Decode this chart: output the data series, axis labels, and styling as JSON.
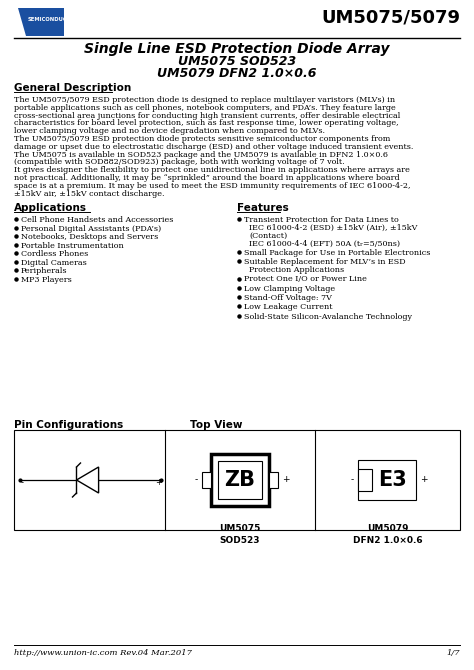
{
  "title_model": "UM5075/5079",
  "title_product": "Single Line ESD Protection Diode Array",
  "title_sub1": "UM5075 SOD523",
  "title_sub2": "UM5079 DFN2 1.0×0.6",
  "section_general": "General Description",
  "section_applications": "Applications",
  "applications": [
    "Cell Phone Handsets and Accessories",
    "Personal Digital Assistants (PDA’s)",
    "Notebooks, Desktops and Servers",
    "Portable Instrumentation",
    "Cordless Phones",
    "Digital Cameras",
    "Peripherals",
    "MP3 Players"
  ],
  "section_features": "Features",
  "features_lines": [
    [
      "Transient Protection for Data Lines to",
      "IEC 61000-4-2 (ESD) ±15kV (Air), ±15kV",
      "(Contact)",
      "IEC 61000-4-4 (EFT) 50A (tᵣ=5/50ns)"
    ],
    [
      "Small Package for Use in Portable Electronics"
    ],
    [
      "Suitable Replacement for MLV’s in ESD",
      "Protection Applications"
    ],
    [
      "Protect One I/O or Power Line"
    ],
    [
      "Low Clamping Voltage"
    ],
    [
      "Stand-Off Voltage: 7V"
    ],
    [
      "Low Leakage Current"
    ],
    [
      "Solid-State Silicon-Avalanche Technology"
    ]
  ],
  "gen_lines": [
    "The UM5075/5079 ESD protection diode is designed to replace multilayer varistors (MLVs) in",
    "portable applications such as cell phones, notebook computers, and PDA’s. They feature large",
    "cross-sectional area junctions for conducting high transient currents, offer desirable electrical",
    "characteristics for board level protection, such as fast response time, lower operating voltage,",
    "lower clamping voltage and no device degradation when compared to MLVs.",
    "The UM5075/5079 ESD protection diode protects sensitive semiconductor components from",
    "damage or upset due to electrostatic discharge (ESD) and other voltage induced transient events.",
    "The UM5075 is available in SOD523 package and the UM5079 is available in DFN2 1.0×0.6",
    "(compatible with SOD882/SOD923) package, both with working voltage of 7 volt.",
    "It gives designer the flexibility to protect one unidirectional line in applications where arrays are",
    "not practical. Additionally, it may be “sprinkled” around the board in applications where board",
    "space is at a premium. It may be used to meet the ESD immunity requirements of IEC 61000-4-2,",
    "±15kV air, ±15kV contact discharge."
  ],
  "section_pin": "Pin Configurations",
  "section_top": "Top View",
  "pkg1_label": "ZB",
  "pkg1_name": "UM5075\nSOD523",
  "pkg2_label": "E3",
  "pkg2_name": "UM5079\nDFN2 1.0×0.6",
  "footer_url": "http://www.union-ic.com Rev.04 Mar.2017",
  "footer_page": "1/7",
  "bg_color": "#ffffff",
  "text_color": "#000000",
  "blue_color": "#1a4fa0",
  "red_color": "#cc0000"
}
